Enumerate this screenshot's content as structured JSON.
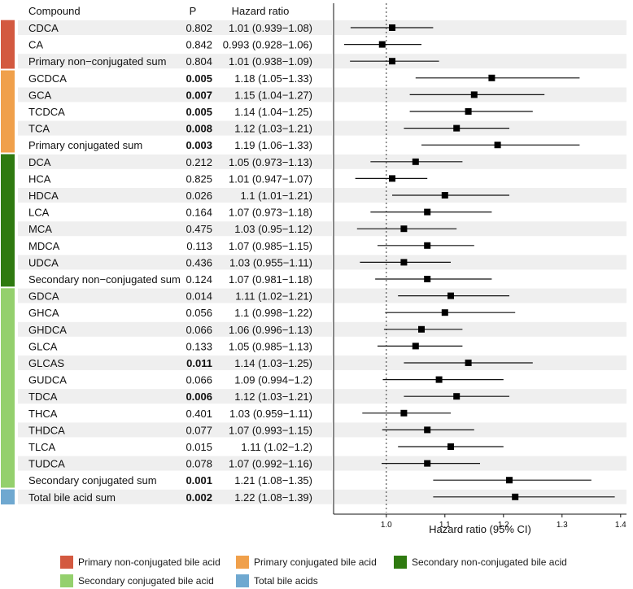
{
  "chart_data": {
    "type": "forest",
    "headers": {
      "compound": "Compound",
      "p": "P",
      "hr": "Hazard ratio"
    },
    "xlabel": "Hazard ratio (95% CI)",
    "x_ticks": [
      "1.0",
      "1.1",
      "1.2",
      "1.3",
      "1.4"
    ],
    "xlim": [
      0.91,
      1.41
    ],
    "reference_line": 1.0,
    "groups": [
      {
        "name": "Primary non-conjugated bile acid",
        "color": "#d35940"
      },
      {
        "name": "Primary conjugated bile acid",
        "color": "#f0a04b"
      },
      {
        "name": "Secondary non-conjugated bile acid",
        "color": "#2f7a10"
      },
      {
        "name": "Secondary conjugated bile acid",
        "color": "#94d06d"
      },
      {
        "name": "Total bile acids",
        "color": "#6fa8d0"
      }
    ],
    "rows": [
      {
        "compound": "CDCA",
        "p": "0.802",
        "bold": false,
        "hr_text": "1.01 (0.939−1.08)",
        "hr": 1.01,
        "lo": 0.939,
        "hi": 1.08,
        "group": 0
      },
      {
        "compound": "CA",
        "p": "0.842",
        "bold": false,
        "hr_text": "0.993 (0.928−1.06)",
        "hr": 0.993,
        "lo": 0.928,
        "hi": 1.06,
        "group": 0
      },
      {
        "compound": "Primary non−conjugated sum",
        "p": "0.804",
        "bold": false,
        "hr_text": "1.01 (0.938−1.09)",
        "hr": 1.01,
        "lo": 0.938,
        "hi": 1.09,
        "group": 0
      },
      {
        "compound": "GCDCA",
        "p": "0.005",
        "bold": true,
        "hr_text": "1.18 (1.05−1.33)",
        "hr": 1.18,
        "lo": 1.05,
        "hi": 1.33,
        "group": 1
      },
      {
        "compound": "GCA",
        "p": "0.007",
        "bold": true,
        "hr_text": "1.15 (1.04−1.27)",
        "hr": 1.15,
        "lo": 1.04,
        "hi": 1.27,
        "group": 1
      },
      {
        "compound": "TCDCA",
        "p": "0.005",
        "bold": true,
        "hr_text": "1.14 (1.04−1.25)",
        "hr": 1.14,
        "lo": 1.04,
        "hi": 1.25,
        "group": 1
      },
      {
        "compound": "TCA",
        "p": "0.008",
        "bold": true,
        "hr_text": "1.12 (1.03−1.21)",
        "hr": 1.12,
        "lo": 1.03,
        "hi": 1.21,
        "group": 1
      },
      {
        "compound": "Primary conjugated sum",
        "p": "0.003",
        "bold": true,
        "hr_text": "1.19 (1.06−1.33)",
        "hr": 1.19,
        "lo": 1.06,
        "hi": 1.33,
        "group": 1
      },
      {
        "compound": "DCA",
        "p": "0.212",
        "bold": false,
        "hr_text": "1.05 (0.973−1.13)",
        "hr": 1.05,
        "lo": 0.973,
        "hi": 1.13,
        "group": 2
      },
      {
        "compound": "HCA",
        "p": "0.825",
        "bold": false,
        "hr_text": "1.01 (0.947−1.07)",
        "hr": 1.01,
        "lo": 0.947,
        "hi": 1.07,
        "group": 2
      },
      {
        "compound": "HDCA",
        "p": "0.026",
        "bold": false,
        "hr_text": "1.1 (1.01−1.21)",
        "hr": 1.1,
        "lo": 1.01,
        "hi": 1.21,
        "group": 2
      },
      {
        "compound": "LCA",
        "p": "0.164",
        "bold": false,
        "hr_text": "1.07 (0.973−1.18)",
        "hr": 1.07,
        "lo": 0.973,
        "hi": 1.18,
        "group": 2
      },
      {
        "compound": "MCA",
        "p": "0.475",
        "bold": false,
        "hr_text": "1.03 (0.95−1.12)",
        "hr": 1.03,
        "lo": 0.95,
        "hi": 1.12,
        "group": 2
      },
      {
        "compound": "MDCA",
        "p": "0.113",
        "bold": false,
        "hr_text": "1.07 (0.985−1.15)",
        "hr": 1.07,
        "lo": 0.985,
        "hi": 1.15,
        "group": 2
      },
      {
        "compound": "UDCA",
        "p": "0.436",
        "bold": false,
        "hr_text": "1.03 (0.955−1.11)",
        "hr": 1.03,
        "lo": 0.955,
        "hi": 1.11,
        "group": 2
      },
      {
        "compound": "Secondary non−conjugated sum",
        "p": "0.124",
        "bold": false,
        "hr_text": "1.07 (0.981−1.18)",
        "hr": 1.07,
        "lo": 0.981,
        "hi": 1.18,
        "group": 2
      },
      {
        "compound": "GDCA",
        "p": "0.014",
        "bold": false,
        "hr_text": "1.11 (1.02−1.21)",
        "hr": 1.11,
        "lo": 1.02,
        "hi": 1.21,
        "group": 3
      },
      {
        "compound": "GHCA",
        "p": "0.056",
        "bold": false,
        "hr_text": "1.1 (0.998−1.22)",
        "hr": 1.1,
        "lo": 0.998,
        "hi": 1.22,
        "group": 3
      },
      {
        "compound": "GHDCA",
        "p": "0.066",
        "bold": false,
        "hr_text": "1.06 (0.996−1.13)",
        "hr": 1.06,
        "lo": 0.996,
        "hi": 1.13,
        "group": 3
      },
      {
        "compound": "GLCA",
        "p": "0.133",
        "bold": false,
        "hr_text": "1.05 (0.985−1.13)",
        "hr": 1.05,
        "lo": 0.985,
        "hi": 1.13,
        "group": 3
      },
      {
        "compound": "GLCAS",
        "p": "0.011",
        "bold": true,
        "hr_text": "1.14 (1.03−1.25)",
        "hr": 1.14,
        "lo": 1.03,
        "hi": 1.25,
        "group": 3
      },
      {
        "compound": "GUDCA",
        "p": "0.066",
        "bold": false,
        "hr_text": "1.09 (0.994−1.2)",
        "hr": 1.09,
        "lo": 0.994,
        "hi": 1.2,
        "group": 3
      },
      {
        "compound": "TDCA",
        "p": "0.006",
        "bold": true,
        "hr_text": "1.12 (1.03−1.21)",
        "hr": 1.12,
        "lo": 1.03,
        "hi": 1.21,
        "group": 3
      },
      {
        "compound": "THCA",
        "p": "0.401",
        "bold": false,
        "hr_text": "1.03 (0.959−1.11)",
        "hr": 1.03,
        "lo": 0.959,
        "hi": 1.11,
        "group": 3
      },
      {
        "compound": "THDCA",
        "p": "0.077",
        "bold": false,
        "hr_text": "1.07 (0.993−1.15)",
        "hr": 1.07,
        "lo": 0.993,
        "hi": 1.15,
        "group": 3
      },
      {
        "compound": "TLCA",
        "p": "0.015",
        "bold": false,
        "hr_text": "1.11 (1.02−1.2)",
        "hr": 1.11,
        "lo": 1.02,
        "hi": 1.2,
        "group": 3
      },
      {
        "compound": "TUDCA",
        "p": "0.078",
        "bold": false,
        "hr_text": "1.07 (0.992−1.16)",
        "hr": 1.07,
        "lo": 0.992,
        "hi": 1.16,
        "group": 3
      },
      {
        "compound": "Secondary conjugated sum",
        "p": "0.001",
        "bold": true,
        "hr_text": "1.21 (1.08−1.35)",
        "hr": 1.21,
        "lo": 1.08,
        "hi": 1.35,
        "group": 3
      },
      {
        "compound": "Total bile acid sum",
        "p": "0.002",
        "bold": true,
        "hr_text": "1.22 (1.08−1.39)",
        "hr": 1.22,
        "lo": 1.08,
        "hi": 1.39,
        "group": 4
      }
    ]
  }
}
